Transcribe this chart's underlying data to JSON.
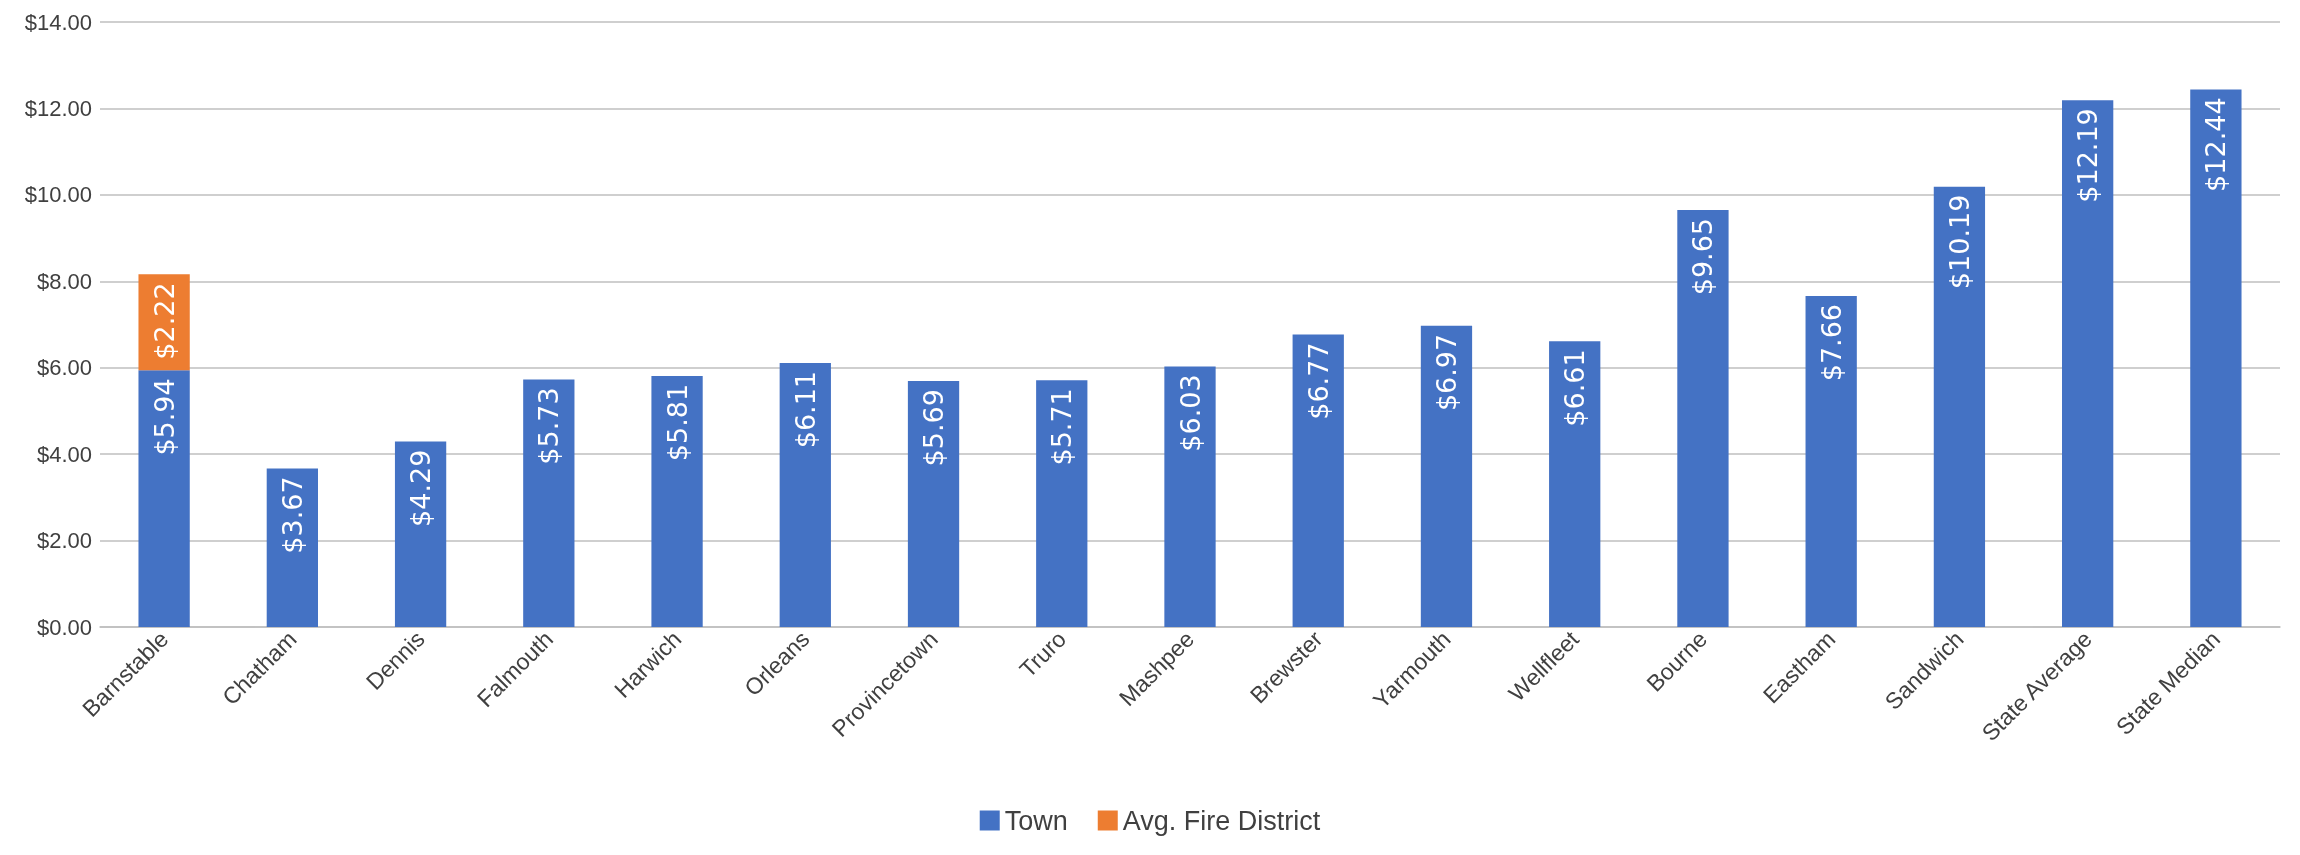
{
  "chart_data": {
    "type": "bar",
    "stacked": true,
    "categories": [
      "Barnstable",
      "Chatham",
      "Dennis",
      "Falmouth",
      "Harwich",
      "Orleans",
      "Provincetown",
      "Truro",
      "Mashpee",
      "Brewster",
      "Yarmouth",
      "Wellfleet",
      "Bourne",
      "Eastham",
      "Sandwich",
      "State Average",
      "State Median"
    ],
    "series": [
      {
        "name": "Town",
        "color": "#4472c4",
        "values": [
          5.94,
          3.67,
          4.29,
          5.73,
          5.81,
          6.11,
          5.69,
          5.71,
          6.03,
          6.77,
          6.97,
          6.61,
          9.65,
          7.66,
          10.19,
          12.19,
          12.44
        ],
        "value_labels": [
          "$5.94",
          "$3.67",
          "$4.29",
          "$5.73",
          "$5.81",
          "$6.11",
          "$5.69",
          "$5.71",
          "$6.03",
          "$6.77",
          "$6.97",
          "$6.61",
          "$9.65",
          "$7.66",
          "$10.19",
          "$12.19",
          "$12.44"
        ]
      },
      {
        "name": "Avg. Fire District",
        "color": "#ed7d31",
        "values": [
          2.22,
          null,
          null,
          null,
          null,
          null,
          null,
          null,
          null,
          null,
          null,
          null,
          null,
          null,
          null,
          null,
          null
        ],
        "value_labels": [
          "$2.22",
          null,
          null,
          null,
          null,
          null,
          null,
          null,
          null,
          null,
          null,
          null,
          null,
          null,
          null,
          null,
          null
        ]
      }
    ],
    "ylim": [
      0,
      14
    ],
    "yticks": [
      {
        "value": 0,
        "label": "$0.00"
      },
      {
        "value": 2,
        "label": "$2.00"
      },
      {
        "value": 4,
        "label": "$4.00"
      },
      {
        "value": 6,
        "label": "$6.00"
      },
      {
        "value": 8,
        "label": "$8.00"
      },
      {
        "value": 10,
        "label": "$10.00"
      },
      {
        "value": 12,
        "label": "$12.00"
      },
      {
        "value": 14,
        "label": "$14.00"
      }
    ],
    "grid": "y",
    "legend": "bottom"
  }
}
